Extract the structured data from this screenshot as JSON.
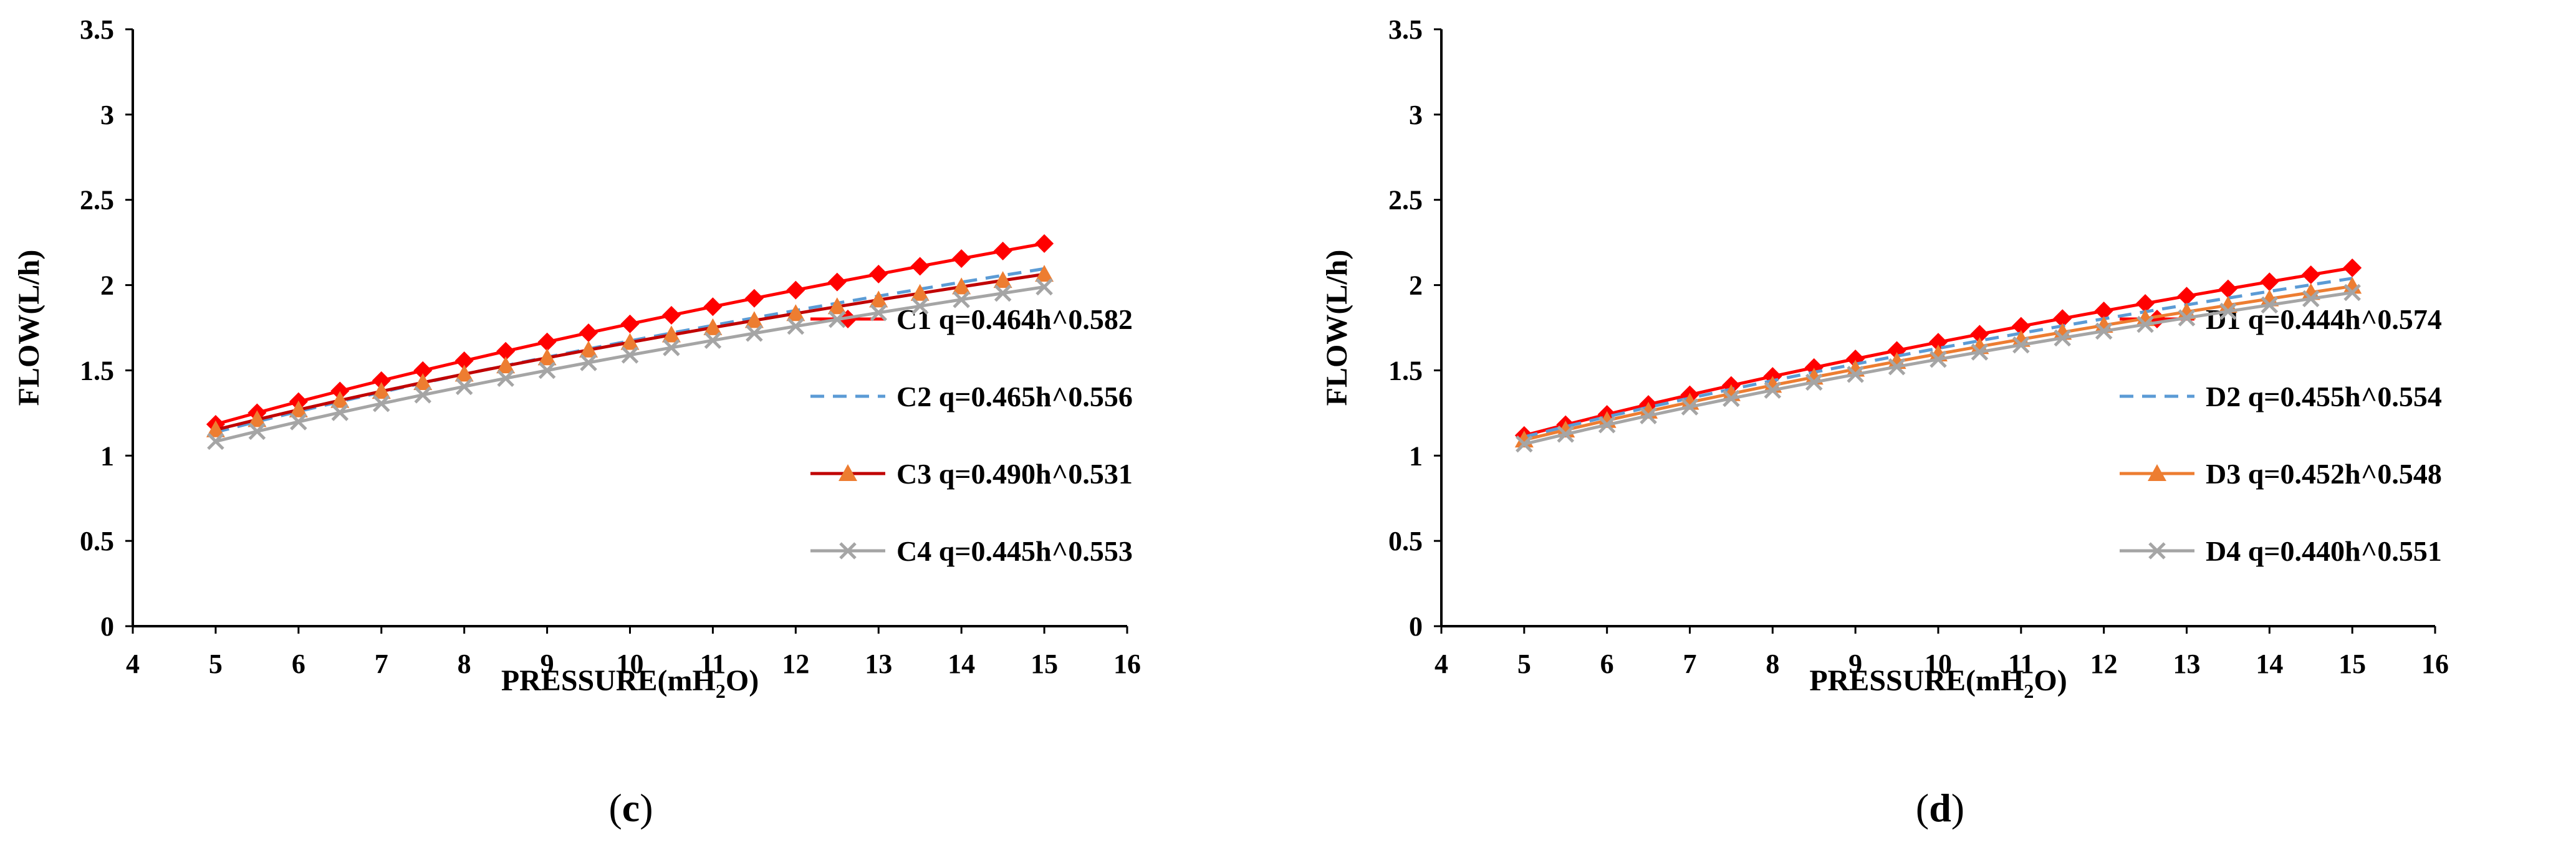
{
  "chart_data": [
    {
      "type": "line",
      "panel_label": "c",
      "xlabel_prefix": "PRESSURE(mH",
      "xlabel_sub": "2",
      "xlabel_suffix": "O)",
      "ylabel": "FLOW(L/h)",
      "xlim": [
        4,
        16
      ],
      "ylim": [
        0,
        3.5
      ],
      "xticks": [
        4,
        5,
        6,
        7,
        8,
        9,
        10,
        11,
        12,
        13,
        14,
        15,
        16
      ],
      "yticks": [
        0,
        0.5,
        1,
        1.5,
        2,
        2.5,
        3,
        3.5
      ],
      "ytick_labels": [
        "0",
        "0.5",
        "1",
        "1.5",
        "2",
        "2.5",
        "3",
        "3.5"
      ],
      "x": [
        5,
        5.5,
        6,
        6.5,
        7,
        7.5,
        8,
        8.5,
        9,
        9.5,
        10,
        10.5,
        11,
        11.5,
        12,
        12.5,
        13,
        13.5,
        14,
        14.5,
        15
      ],
      "series": [
        {
          "name": "C1 q=0.464h^0.582",
          "a": 0.464,
          "b": 0.582,
          "color": "#ff0000",
          "marker": "diamond",
          "dash": "solid"
        },
        {
          "name": "C2 q=0.465h^0.556",
          "a": 0.465,
          "b": 0.556,
          "color": "#5b9bd5",
          "marker": "none",
          "dash": "dashed"
        },
        {
          "name": "C3 q=0.490h^0.531",
          "a": 0.49,
          "b": 0.531,
          "color": "#c00000",
          "marker": "triangle",
          "dash": "solid",
          "marker_color": "#ed7d31"
        },
        {
          "name": "C4 q=0.445h^0.553",
          "a": 0.445,
          "b": 0.553,
          "color": "#a5a5a5",
          "marker": "x",
          "dash": "solid"
        }
      ]
    },
    {
      "type": "line",
      "panel_label": "d",
      "xlabel_prefix": "PRESSURE(mH",
      "xlabel_sub": "2",
      "xlabel_suffix": "O)",
      "ylabel": "FLOW(L/h)",
      "xlim": [
        4,
        16
      ],
      "ylim": [
        0,
        3.5
      ],
      "xticks": [
        4,
        5,
        6,
        7,
        8,
        9,
        10,
        11,
        12,
        13,
        14,
        15,
        16
      ],
      "yticks": [
        0,
        0.5,
        1,
        1.5,
        2,
        2.5,
        3,
        3.5
      ],
      "ytick_labels": [
        "0",
        "0.5",
        "1",
        "1.5",
        "2",
        "2.5",
        "3",
        "3.5"
      ],
      "x": [
        5,
        5.5,
        6,
        6.5,
        7,
        7.5,
        8,
        8.5,
        9,
        9.5,
        10,
        10.5,
        11,
        11.5,
        12,
        12.5,
        13,
        13.5,
        14,
        14.5,
        15
      ],
      "series": [
        {
          "name": "D1 q=0.444h^0.574",
          "a": 0.444,
          "b": 0.574,
          "color": "#ff0000",
          "marker": "diamond",
          "dash": "solid"
        },
        {
          "name": "D2 q=0.455h^0.554",
          "a": 0.455,
          "b": 0.554,
          "color": "#5b9bd5",
          "marker": "none",
          "dash": "dashed"
        },
        {
          "name": "D3 q=0.452h^0.548",
          "a": 0.452,
          "b": 0.548,
          "color": "#ed7d31",
          "marker": "triangle",
          "dash": "solid"
        },
        {
          "name": "D4 q=0.440h^0.551",
          "a": 0.44,
          "b": 0.551,
          "color": "#a5a5a5",
          "marker": "x",
          "dash": "solid"
        }
      ]
    }
  ]
}
